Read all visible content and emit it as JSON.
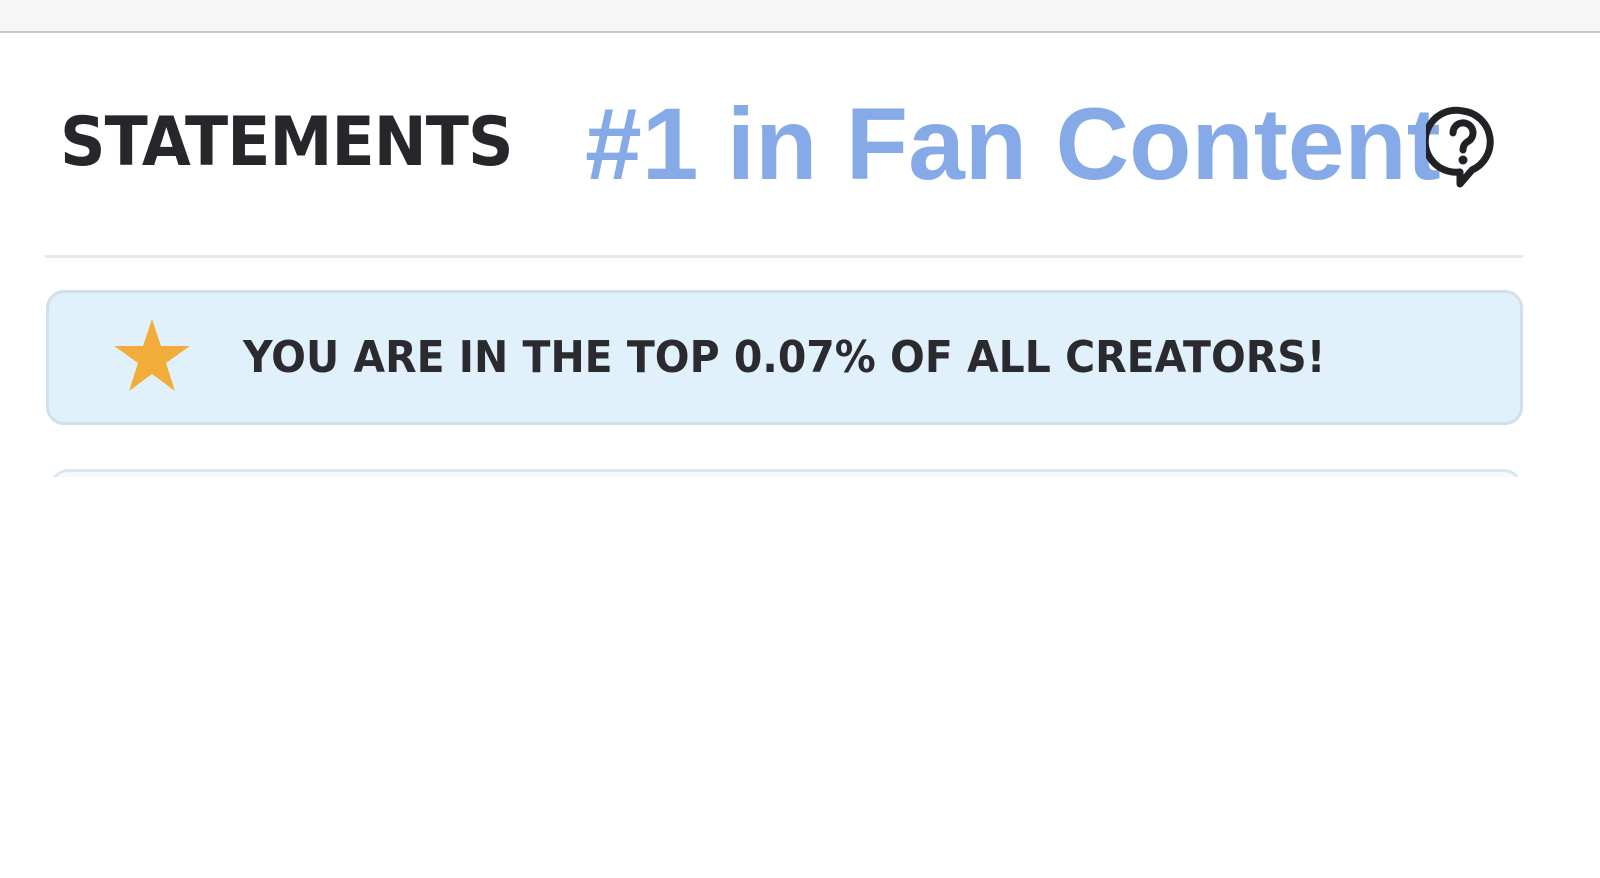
{
  "header": {
    "title": "STATEMENTS",
    "rank_text": "#1 in Fan Content",
    "help_icon": "question-speech-bubble-icon"
  },
  "banner": {
    "icon": "star-icon",
    "text": "YOU ARE IN THE TOP 0.07% OF ALL CREATORS!"
  },
  "colors": {
    "rank_text": "#86aae8",
    "banner_bg": "#e1f1fc",
    "banner_border": "#d0dfea",
    "star": "#f2ac3a",
    "title": "#26262b"
  }
}
